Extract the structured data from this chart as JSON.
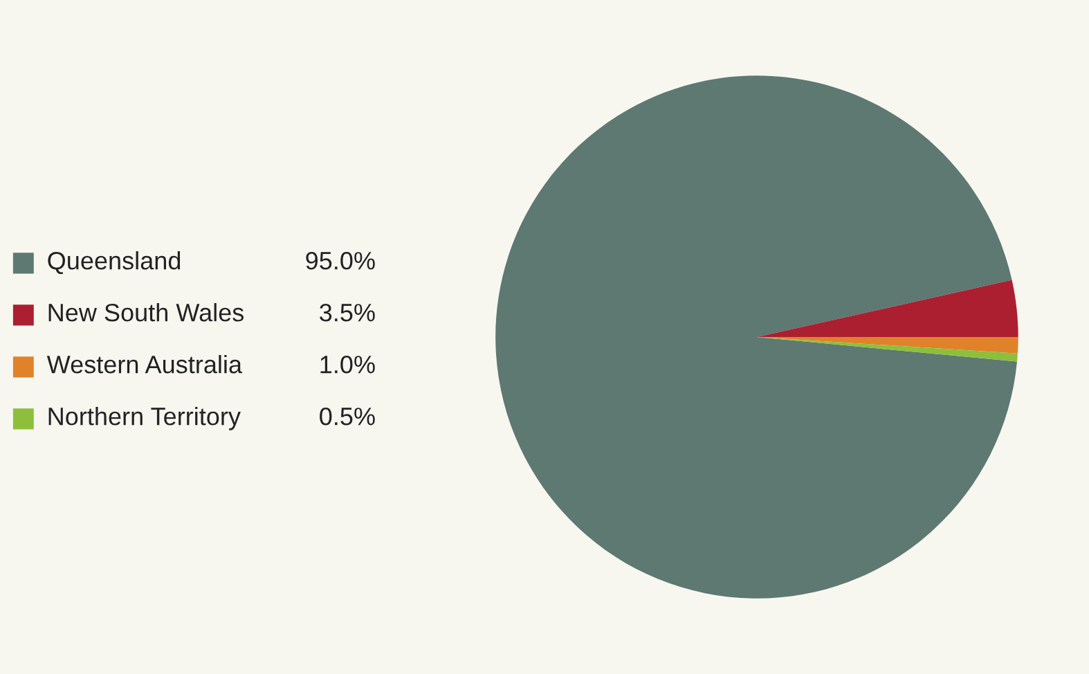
{
  "chart_data": {
    "type": "pie",
    "categories": [
      "Queensland",
      "New South Wales",
      "Western Australia",
      "Northern Territory"
    ],
    "values": [
      95.0,
      3.5,
      1.0,
      0.5
    ],
    "value_labels": [
      "95.0%",
      "3.5%",
      "1.0%",
      "0.5%"
    ],
    "colors": [
      "#5e7872",
      "#ac1f30",
      "#e0822a",
      "#8dbf3c"
    ],
    "legend": "left"
  }
}
